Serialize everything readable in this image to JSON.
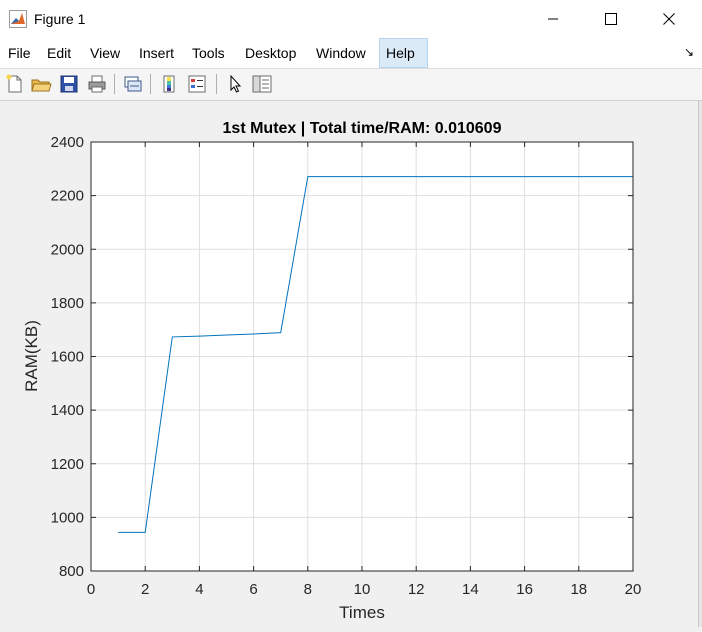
{
  "window": {
    "title": "Figure 1"
  },
  "menu": {
    "items": [
      "File",
      "Edit",
      "View",
      "Insert",
      "Tools",
      "Desktop",
      "Window",
      "Help"
    ],
    "active": "Help"
  },
  "toolbar": {
    "icons": [
      "new-figure-icon",
      "open-file-icon",
      "save-icon",
      "print-icon",
      "link-plot-icon",
      "insert-colorbar-icon",
      "insert-legend-icon",
      "pointer-icon",
      "property-editor-icon"
    ]
  },
  "colors": {
    "line": "#0072bd",
    "grid": "#dfdfdf",
    "axes": "#262626"
  },
  "chart_data": {
    "type": "line",
    "title": "1st Mutex | Total time/RAM: 0.010609",
    "xlabel": "Times",
    "ylabel": "RAM(KB)",
    "xlim": [
      0,
      20
    ],
    "ylim": [
      800,
      2400
    ],
    "xticks": [
      0,
      2,
      4,
      6,
      8,
      10,
      12,
      14,
      16,
      18,
      20
    ],
    "yticks": [
      800,
      1000,
      1200,
      1400,
      1600,
      1800,
      2000,
      2200,
      2400
    ],
    "grid": true,
    "series": [
      {
        "x": [
          1,
          2,
          3,
          4,
          5,
          6,
          7,
          8,
          9,
          10,
          11,
          12,
          13,
          14,
          15,
          16,
          17,
          18,
          19,
          20
        ],
        "y": [
          944,
          944,
          1673,
          1676,
          1680,
          1684,
          1689,
          2271,
          2271,
          2271,
          2271,
          2271,
          2271,
          2271,
          2271,
          2271,
          2271,
          2271,
          2271,
          2271
        ]
      }
    ]
  }
}
